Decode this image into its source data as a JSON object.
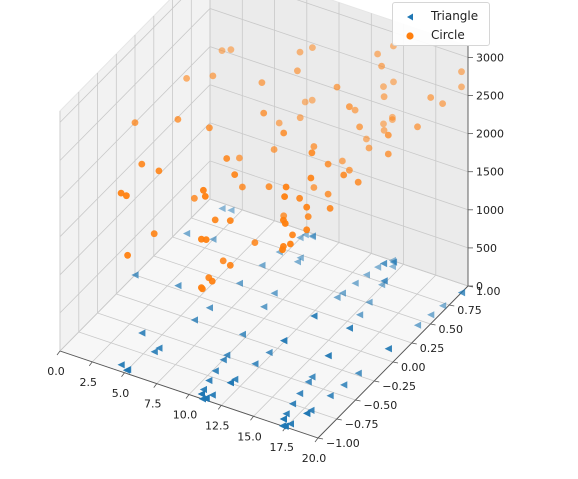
{
  "chart_data": {
    "type": "scatter",
    "projection": "3d",
    "title": "",
    "xlabel": "",
    "ylabel": "",
    "zlabel": "",
    "xlim": [
      0,
      20
    ],
    "ylim": [
      -1,
      1
    ],
    "zlim": [
      0,
      3000
    ],
    "x_ticks": [
      "0.0",
      "2.5",
      "5.0",
      "7.5",
      "10.0",
      "12.5",
      "15.0",
      "17.5",
      "20.0"
    ],
    "y_ticks": [
      "−1.00",
      "−0.75",
      "−0.50",
      "−0.25",
      "0.00",
      "0.25",
      "0.50",
      "0.75",
      "1.00"
    ],
    "z_ticks": [
      "0",
      "500",
      "1000",
      "1500",
      "2000",
      "2500",
      "3000"
    ],
    "grid": true,
    "legend": {
      "placement": "top-right"
    },
    "series": [
      {
        "name": "Triangle",
        "marker": "triangle-left",
        "color": "#1f77b4",
        "groups": [
          {
            "x_start": 0,
            "x_end": 18,
            "z": 0
          },
          {
            "x_start": 5,
            "x_end": 20,
            "z": 0
          },
          {
            "x_start": 10,
            "x_end": 20,
            "z": 0
          }
        ],
        "samples": 30,
        "y_rule": "sin(x)"
      },
      {
        "name": "Circle",
        "marker": "circle",
        "color": "#ff7f0e",
        "groups": [
          {
            "x_start": 0,
            "x_end": 18,
            "z_start": 2000,
            "z_end": 3050
          },
          {
            "x_start": 5,
            "x_end": 20,
            "z_start": 1500,
            "z_end": 2900
          },
          {
            "x_start": 10,
            "x_end": 20,
            "z_start": 1300,
            "z_end": 2700
          }
        ],
        "samples": 30,
        "y_rule": "sin(x)"
      }
    ]
  }
}
